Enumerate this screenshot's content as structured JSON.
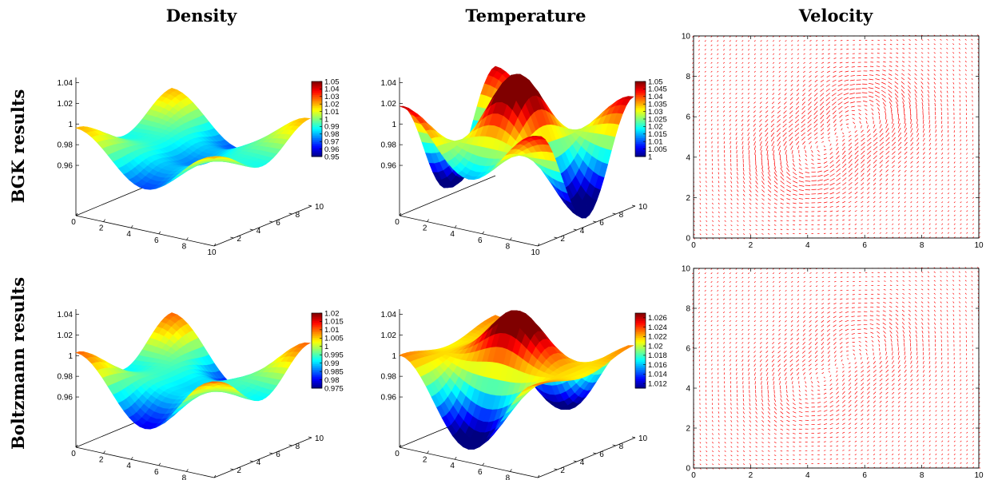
{
  "column_titles": [
    "Density",
    "Temperature",
    "Velocity"
  ],
  "row_titles": [
    "BGK results",
    "Boltzmann results"
  ],
  "chart_data": [
    {
      "type": "surface",
      "panel": "BGK results / Density",
      "x_range": [
        0,
        10
      ],
      "y_range": [
        0,
        10
      ],
      "x_ticks": [
        "0",
        "2",
        "4",
        "6",
        "8",
        "10"
      ],
      "y_ticks": [
        "2",
        "4",
        "6",
        "8",
        "10"
      ],
      "z_ticks": [
        "0.96",
        "0.98",
        "1",
        "1.02",
        "1.04"
      ],
      "z_range": [
        0.95,
        1.05
      ],
      "model": {
        "base": 1.0,
        "amp_corner": 0.02,
        "amp_center": 0.045,
        "amp_mid": 0.01
      },
      "colorbar": {
        "min": 0.95,
        "max": 1.05,
        "ticks": [
          "1.05",
          "1.04",
          "1.03",
          "1.02",
          "1.01",
          "1",
          "0.99",
          "0.98",
          "0.97",
          "0.96",
          "0.95"
        ]
      },
      "colormap": "jet"
    },
    {
      "type": "surface",
      "panel": "BGK results / Temperature",
      "x_range": [
        0,
        10
      ],
      "y_range": [
        0,
        10
      ],
      "x_ticks": [
        "0",
        "2",
        "4",
        "6",
        "8",
        "10"
      ],
      "y_ticks": [
        "2",
        "4",
        "6",
        "8",
        "10"
      ],
      "z_ticks": [
        "0.96",
        "0.98",
        "1",
        "1.02",
        "1.04"
      ],
      "z_range": [
        1.0,
        1.05
      ],
      "model": {
        "base": 1.025,
        "amp_corner": 0.022,
        "amp_center": -0.015,
        "amp_mid": -0.012
      },
      "colorbar": {
        "min": 1.0,
        "max": 1.05,
        "ticks": [
          "1.05",
          "1.045",
          "1.04",
          "1.035",
          "1.03",
          "1.025",
          "1.02",
          "1.015",
          "1.01",
          "1.005",
          "1"
        ]
      },
      "colormap": "jet"
    },
    {
      "type": "surface",
      "panel": "Boltzmann results / Density",
      "x_range": [
        0,
        10
      ],
      "y_range": [
        0,
        10
      ],
      "x_ticks": [
        "0",
        "2",
        "4",
        "6",
        "8",
        "10"
      ],
      "y_ticks": [
        "2",
        "4",
        "6",
        "8",
        "10"
      ],
      "z_ticks": [
        "0.96",
        "0.98",
        "1",
        "1.02",
        "1.04"
      ],
      "z_range": [
        0.975,
        1.02
      ],
      "model": {
        "base": 0.998,
        "amp_corner": 0.012,
        "amp_center": 0.02,
        "amp_mid": 0.006
      },
      "colorbar": {
        "min": 0.975,
        "max": 1.02,
        "ticks": [
          "1.02",
          "1.015",
          "1.01",
          "1.005",
          "1",
          "0.995",
          "0.99",
          "0.985",
          "0.98",
          "0.975"
        ]
      },
      "colormap": "jet"
    },
    {
      "type": "surface",
      "panel": "Boltzmann results / Temperature",
      "x_range": [
        0,
        10
      ],
      "y_range": [
        0,
        10
      ],
      "x_ticks": [
        "0",
        "2",
        "4",
        "6",
        "8",
        "10"
      ],
      "y_ticks": [
        "2",
        "4",
        "6",
        "8",
        "10"
      ],
      "z_ticks": [
        "0.96",
        "0.98",
        "1",
        "1.02",
        "1.04"
      ],
      "z_range": [
        1.011,
        1.027
      ],
      "model": {
        "base": 1.019,
        "amp_corner": 0.004,
        "amp_center": -0.007,
        "amp_mid": 0.006
      },
      "colorbar": {
        "min": 1.011,
        "max": 1.027,
        "ticks": [
          "1.026",
          "1.024",
          "1.022",
          "1.02",
          "1.018",
          "1.016",
          "1.014",
          "1.012"
        ]
      },
      "colormap": "jet"
    },
    {
      "type": "vector_field",
      "panel": "BGK results / Velocity",
      "x_range": [
        0,
        10
      ],
      "y_range": [
        0,
        10
      ],
      "x_ticks": [
        "0",
        "2",
        "4",
        "6",
        "8",
        "10"
      ],
      "y_ticks": [
        "0",
        "2",
        "4",
        "6",
        "8",
        "10"
      ],
      "vortex_centers": [
        [
          4,
          4
        ],
        [
          6,
          6
        ]
      ],
      "arrow_color": "#ff0000",
      "strength": 1.0
    },
    {
      "type": "vector_field",
      "panel": "Boltzmann results / Velocity",
      "x_range": [
        0,
        10
      ],
      "y_range": [
        0,
        10
      ],
      "x_ticks": [
        "0",
        "2",
        "4",
        "6",
        "8",
        "10"
      ],
      "y_ticks": [
        "0",
        "2",
        "4",
        "6",
        "8",
        "10"
      ],
      "vortex_centers": [
        [
          4,
          4
        ],
        [
          6,
          6
        ]
      ],
      "arrow_color": "#ff0000",
      "strength": 0.55
    }
  ]
}
